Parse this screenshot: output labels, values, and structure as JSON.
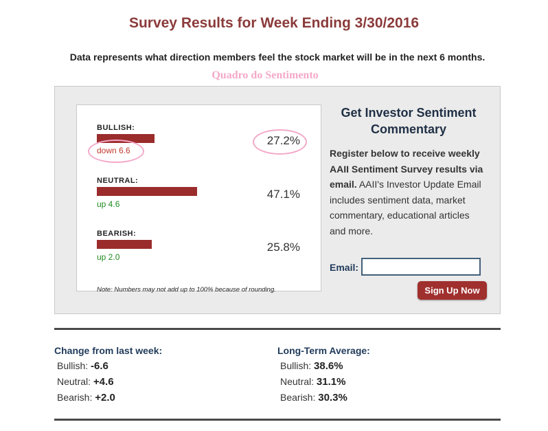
{
  "header": {
    "title": "Survey Results for Week Ending 3/30/2016",
    "subtitle": "Data represents what direction members feel the stock market will be in the next 6 months.",
    "annotation": "Quadro do Sentimento"
  },
  "sentiment": {
    "rows": [
      {
        "label": "BULLISH:",
        "percent": "27.2%",
        "value": 27.2,
        "change": "down 6.6",
        "direction": "down"
      },
      {
        "label": "NEUTRAL:",
        "percent": "47.1%",
        "value": 47.1,
        "change": "up 4.6",
        "direction": "up"
      },
      {
        "label": "BEARISH:",
        "percent": "25.8%",
        "value": 25.8,
        "change": "up 2.0",
        "direction": "up"
      }
    ],
    "note": "Note: Numbers may not add up to 100% because of rounding.",
    "bar_color": "#9b2c2c"
  },
  "signup": {
    "title_line1": "Get Investor Sentiment",
    "title_line2": "Commentary",
    "bold_text": "Register below to receive weekly AAII Sentiment Survey results via email.",
    "text": "AAII's Investor Update Email includes sentiment data, market commentary, educational articles and more.",
    "email_label": "Email:",
    "email_value": "",
    "button_label": "Sign Up Now"
  },
  "change_from_last_week": {
    "heading": "Change from last week:",
    "items": [
      {
        "label": "Bullish:",
        "value": "-6.6"
      },
      {
        "label": "Neutral:",
        "value": "+4.6"
      },
      {
        "label": "Bearish:",
        "value": "+2.0"
      }
    ]
  },
  "long_term_average": {
    "heading": "Long-Term Average:",
    "items": [
      {
        "label": "Bullish:",
        "value": "38.6%"
      },
      {
        "label": "Neutral:",
        "value": "31.1%"
      },
      {
        "label": "Bearish:",
        "value": "30.3%"
      }
    ]
  },
  "colors": {
    "title": "#8b3a3a",
    "annotation": "#f4a8c8",
    "button": "#a0302e",
    "heading_blue": "#1f3a5a"
  }
}
